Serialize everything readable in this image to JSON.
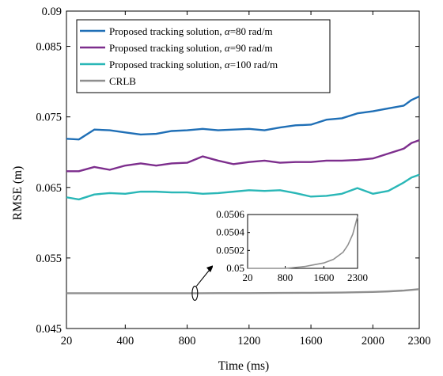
{
  "chart_data": {
    "type": "line",
    "xlabel": "Time (ms)",
    "ylabel": "RMSE (m)",
    "xlim": [
      20,
      2300
    ],
    "ylim": [
      0.045,
      0.09
    ],
    "xticks": [
      20,
      400,
      800,
      1200,
      1600,
      2000,
      2300
    ],
    "yticks": [
      0.045,
      0.055,
      0.065,
      0.075,
      0.085,
      0.09
    ],
    "ytick_labels": [
      "0.045",
      "0.055",
      "0.065",
      "0.075",
      "0.085",
      "0.09"
    ],
    "grid": false,
    "legend_position": "top-left",
    "series": [
      {
        "name": "Proposed tracking solution, α=80 rad/m",
        "legend": {
          "prefix": "Proposed tracking solution, ",
          "symbol": "α",
          "suffix": "=80 rad/m"
        },
        "color": "#1f6fb6",
        "x": [
          20,
          100,
          200,
          300,
          400,
          500,
          600,
          700,
          800,
          900,
          1000,
          1100,
          1200,
          1300,
          1400,
          1500,
          1600,
          1700,
          1800,
          1900,
          2000,
          2100,
          2200,
          2250,
          2300
        ],
        "y": [
          0.0719,
          0.0718,
          0.0732,
          0.0731,
          0.0728,
          0.0725,
          0.0726,
          0.073,
          0.0731,
          0.0733,
          0.0731,
          0.0732,
          0.0733,
          0.0731,
          0.0735,
          0.0738,
          0.0739,
          0.0746,
          0.0748,
          0.0755,
          0.0758,
          0.0762,
          0.0766,
          0.0774,
          0.0779
        ]
      },
      {
        "name": "Proposed tracking solution, α=90 rad/m",
        "legend": {
          "prefix": "Proposed tracking solution, ",
          "symbol": "α",
          "suffix": "=90 rad/m"
        },
        "color": "#7d2e8d",
        "x": [
          20,
          100,
          200,
          300,
          400,
          500,
          600,
          700,
          800,
          900,
          1000,
          1100,
          1200,
          1300,
          1400,
          1500,
          1600,
          1700,
          1800,
          1900,
          2000,
          2100,
          2200,
          2250,
          2300
        ],
        "y": [
          0.0673,
          0.0673,
          0.0679,
          0.0675,
          0.0681,
          0.0684,
          0.0681,
          0.0684,
          0.0685,
          0.0694,
          0.0688,
          0.0683,
          0.0686,
          0.0688,
          0.0685,
          0.0686,
          0.0686,
          0.0688,
          0.0688,
          0.0689,
          0.0691,
          0.0698,
          0.0705,
          0.0713,
          0.0717
        ]
      },
      {
        "name": "Proposed tracking solution, α=100 rad/m",
        "legend": {
          "prefix": "Proposed tracking solution, ",
          "symbol": "α",
          "suffix": "=100 rad/m"
        },
        "color": "#2ab7b7",
        "x": [
          20,
          100,
          200,
          300,
          400,
          500,
          600,
          700,
          800,
          900,
          1000,
          1100,
          1200,
          1300,
          1400,
          1500,
          1600,
          1700,
          1800,
          1900,
          2000,
          2100,
          2200,
          2250,
          2300
        ],
        "y": [
          0.0636,
          0.0633,
          0.064,
          0.0642,
          0.0641,
          0.0644,
          0.0644,
          0.0643,
          0.0643,
          0.0641,
          0.0642,
          0.0644,
          0.0646,
          0.0645,
          0.0646,
          0.0642,
          0.0637,
          0.0638,
          0.0641,
          0.0649,
          0.0641,
          0.0645,
          0.0657,
          0.0664,
          0.0668
        ]
      },
      {
        "name": "CRLB",
        "legend": {
          "prefix": "CRLB",
          "symbol": "",
          "suffix": ""
        },
        "color": "#8f8f8f",
        "x": [
          20,
          200,
          400,
          600,
          800,
          1000,
          1200,
          1400,
          1600,
          1800,
          2000,
          2100,
          2200,
          2300
        ],
        "y": [
          0.05,
          0.05,
          0.05,
          0.05,
          0.05,
          0.05001,
          0.05002,
          0.05004,
          0.05006,
          0.0501,
          0.05018,
          0.05026,
          0.05038,
          0.05058
        ]
      }
    ],
    "inset": {
      "xlim": [
        20,
        2300
      ],
      "ylim": [
        0.05,
        0.0506
      ],
      "xticks": [
        20,
        800,
        1600,
        2300
      ],
      "yticks": [
        0.05,
        0.0502,
        0.0504,
        0.0506
      ],
      "ytick_labels": [
        "0.05",
        "0.0502",
        "0.0504",
        "0.0506"
      ]
    }
  }
}
